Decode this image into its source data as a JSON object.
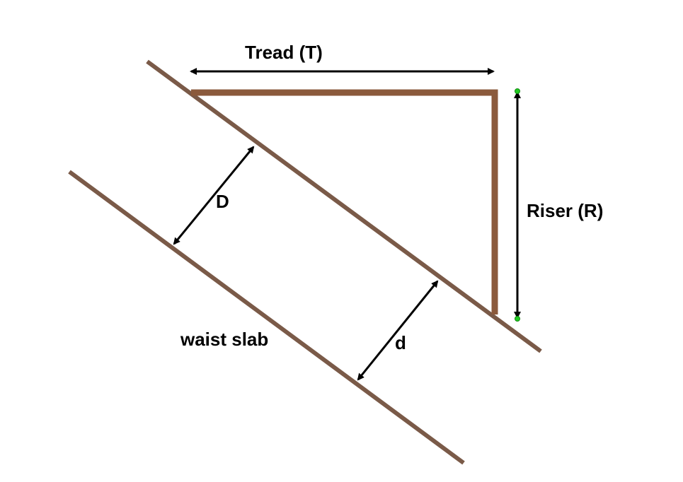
{
  "labels": {
    "tread": "Tread (T)",
    "riser": "Riser (R)",
    "overall_depth": "D",
    "effective_depth": "d",
    "waist_slab": "waist slab"
  },
  "colors": {
    "slab_line": "#7a5a48",
    "step_outline": "#8b5a3c",
    "dimension_arrow": "#000000",
    "endpoint_marker": "#22cc22"
  }
}
